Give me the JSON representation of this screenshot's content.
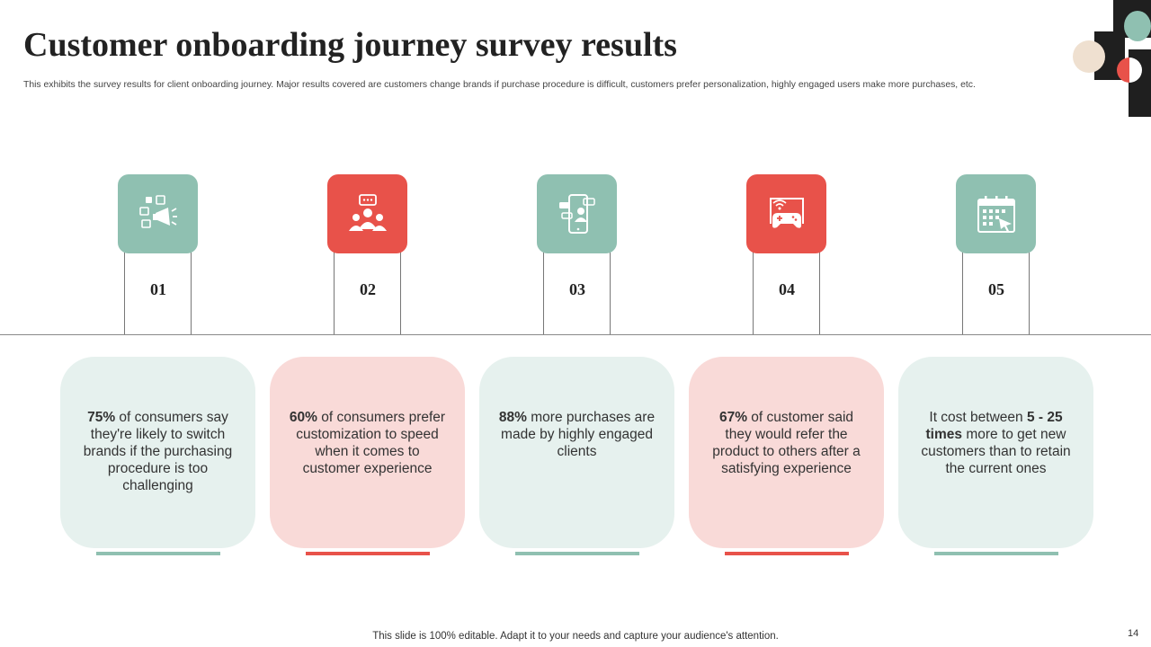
{
  "slide": {
    "title": "Customer onboarding journey survey results",
    "subtitle": "This exhibits the survey results for client onboarding journey. Major results covered are customers change brands if purchase procedure is difficult, customers prefer personalization, highly engaged users make more purchases, etc.",
    "footer": "This slide is 100% editable. Adapt it to your needs and capture your audience's attention.",
    "page_number": "14"
  },
  "colors": {
    "mint": "#8fc0b1",
    "red": "#e8524a",
    "mint_card": "#e6f1ee",
    "red_card": "#f9dad8"
  },
  "steps": [
    {
      "number": "01",
      "icon": "megaphone-social-icon",
      "color": "mint",
      "highlight": "75%",
      "text": " of consumers say they're likely to switch brands if the purchasing procedure is too challenging"
    },
    {
      "number": "02",
      "icon": "group-chat-icon",
      "color": "red",
      "highlight": "60%",
      "text": " of consumers prefer customization to speed when it comes to customer experience"
    },
    {
      "number": "03",
      "icon": "mobile-chat-user-icon",
      "color": "mint",
      "highlight": "88%",
      "text": " more purchases are made by highly engaged clients"
    },
    {
      "number": "04",
      "icon": "game-controller-screen-icon",
      "color": "red",
      "highlight": "67%",
      "text": " of customer said they would refer the product to others after a satisfying experience"
    },
    {
      "number": "05",
      "icon": "calendar-cursor-icon",
      "color": "mint",
      "pre": "It cost between ",
      "highlight": "5 - 25 times",
      "text": " more to get new customers than to retain the current ones"
    }
  ]
}
